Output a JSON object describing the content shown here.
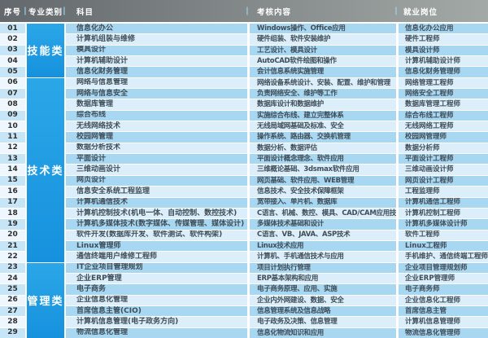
{
  "header": {
    "columns": [
      "序号",
      "专业类别",
      "科目",
      "考核内容",
      "就业岗位"
    ],
    "separator": "|"
  },
  "categories": [
    {
      "label": "技能类",
      "start": 1,
      "end": 5
    },
    {
      "label": "技术类",
      "start": 6,
      "end": 22
    },
    {
      "label": "管理类",
      "start": 23,
      "end": 29
    }
  ],
  "rows": [
    {
      "no": "01",
      "subject": "信息化办公",
      "content": "Windows操作、Office应用",
      "job": "信息化办公应用"
    },
    {
      "no": "02",
      "subject": "计算机组装与维修",
      "content": "硬件组装、软件安装维护",
      "job": "硬件工程师"
    },
    {
      "no": "03",
      "subject": "模具设计",
      "content": "工艺设计、模具设计",
      "job": "模具设计师"
    },
    {
      "no": "04",
      "subject": "计算机辅助设计",
      "content": "AutoCAD软件绘图和操作",
      "job": "计算机辅助设计师"
    },
    {
      "no": "05",
      "subject": "信息化财务管理",
      "content": "会计信息系统实施管理",
      "job": "信息化财务管理师"
    },
    {
      "no": "06",
      "subject": "网络与信息管理",
      "content": "网络设备系统设计、安装、配置、维护和管理",
      "job": "网络管理工程师"
    },
    {
      "no": "07",
      "subject": "网络与信息安全",
      "content": "负责网络安全、维护等工作",
      "job": "网络安全工程师"
    },
    {
      "no": "08",
      "subject": "数据库管理",
      "content": "数据库设计和数据维护",
      "job": "数据库管理工程师"
    },
    {
      "no": "09",
      "subject": "综合布线",
      "content": "实施综合布线、建立完整体系",
      "job": "综合布线工程师"
    },
    {
      "no": "10",
      "subject": "无线网络技术",
      "content": "无线局域网基础及标准、安全",
      "job": "无线网络工程师"
    },
    {
      "no": "11",
      "subject": "校园网管理",
      "content": "操作系统、路由器、交换机管理",
      "job": "校园网管理师"
    },
    {
      "no": "12",
      "subject": "数据分析技术",
      "content": "数据分析、数据评估",
      "job": "数据分析师"
    },
    {
      "no": "13",
      "subject": "平面设计",
      "content": "平面设计概念理念、软件应用",
      "job": "平面设计工程师"
    },
    {
      "no": "14",
      "subject": "三维动画设计",
      "content": "三维概论基础、3dsmax软件应用",
      "job": "三维动画设计师"
    },
    {
      "no": "15",
      "subject": "网页设计",
      "content": "网页基础、软件应用、WEB管理",
      "job": "网页设计工程师"
    },
    {
      "no": "16",
      "subject": "信息安全系统工程监理",
      "content": "信息技术、安全技术保障框架",
      "job": "工程监理师"
    },
    {
      "no": "17",
      "subject": "计算机通信技术",
      "content": "宽带接入、单片机、数据库",
      "job": "计算机通信工程师"
    },
    {
      "no": "18",
      "subject": "计算机控制技术(机电一体、自动控制、数控技术)",
      "content": "C语言、机械、数控、模具、CAD/CAM应用技术",
      "job": "计算机控制工程师"
    },
    {
      "no": "19",
      "subject": "计算机多媒体技术(数字媒体、传媒管理、媒体设计)",
      "content": "多媒体技术基础和设计",
      "job": "计算机多媒体设计师"
    },
    {
      "no": "20",
      "subject": "软件开发(数据库开发、软件测试、软件构架)",
      "content": "C语言、VB、JAVA、ASP技术",
      "job": "软件工程师"
    },
    {
      "no": "21",
      "subject": "Linux管理师",
      "content": "Linux技术应用",
      "job": "Linux工程师"
    },
    {
      "no": "22",
      "subject": "通信终端用户维修工程师",
      "content": "计算机、手机通信技术与应用",
      "job": "手机维护、通信终端工程师"
    },
    {
      "no": "23",
      "subject": "IT企业项目管理规划",
      "content": "项目计划执行管理",
      "job": "企业项目管理规划师"
    },
    {
      "no": "24",
      "subject": "企业ERP管理",
      "content": "ERP基本架构和应用",
      "job": "企业ERP管理师"
    },
    {
      "no": "25",
      "subject": "电子商务",
      "content": "电子商务原理、应用、实施",
      "job": "电子商务师"
    },
    {
      "no": "26",
      "subject": "企业信息化管理",
      "content": "企业内外网建设、数据、安全",
      "job": "企业信息化工程师"
    },
    {
      "no": "27",
      "subject": "首席信息主管(CIO)",
      "content": "信息管理系统及信息战略",
      "job": "首席信息主管"
    },
    {
      "no": "28",
      "subject": "计算机信息管理(电子政务方向)",
      "content": "电子政务及决策、信息管理",
      "job": "计算机信息管理师"
    },
    {
      "no": "29",
      "subject": "物流信息化管理",
      "content": "信息化物流知识和应用",
      "job": "物流信息化管理师"
    }
  ],
  "colors": {
    "header_left": "#63686c",
    "header_right": "#a3a9a6",
    "header_text": "#ffffff",
    "separator": "#9bd7f2",
    "category_blue_top": "#2ba7e8",
    "category_blue_bottom": "#1691dd",
    "category_text": "#ffffff",
    "row_odd": "#a8d7f1",
    "row_even": "#dbeef9",
    "num_odd": "#c6e5f7",
    "num_even": "#eef7fd",
    "num_text": "#2e2e2e",
    "text": "#3f4d58"
  }
}
